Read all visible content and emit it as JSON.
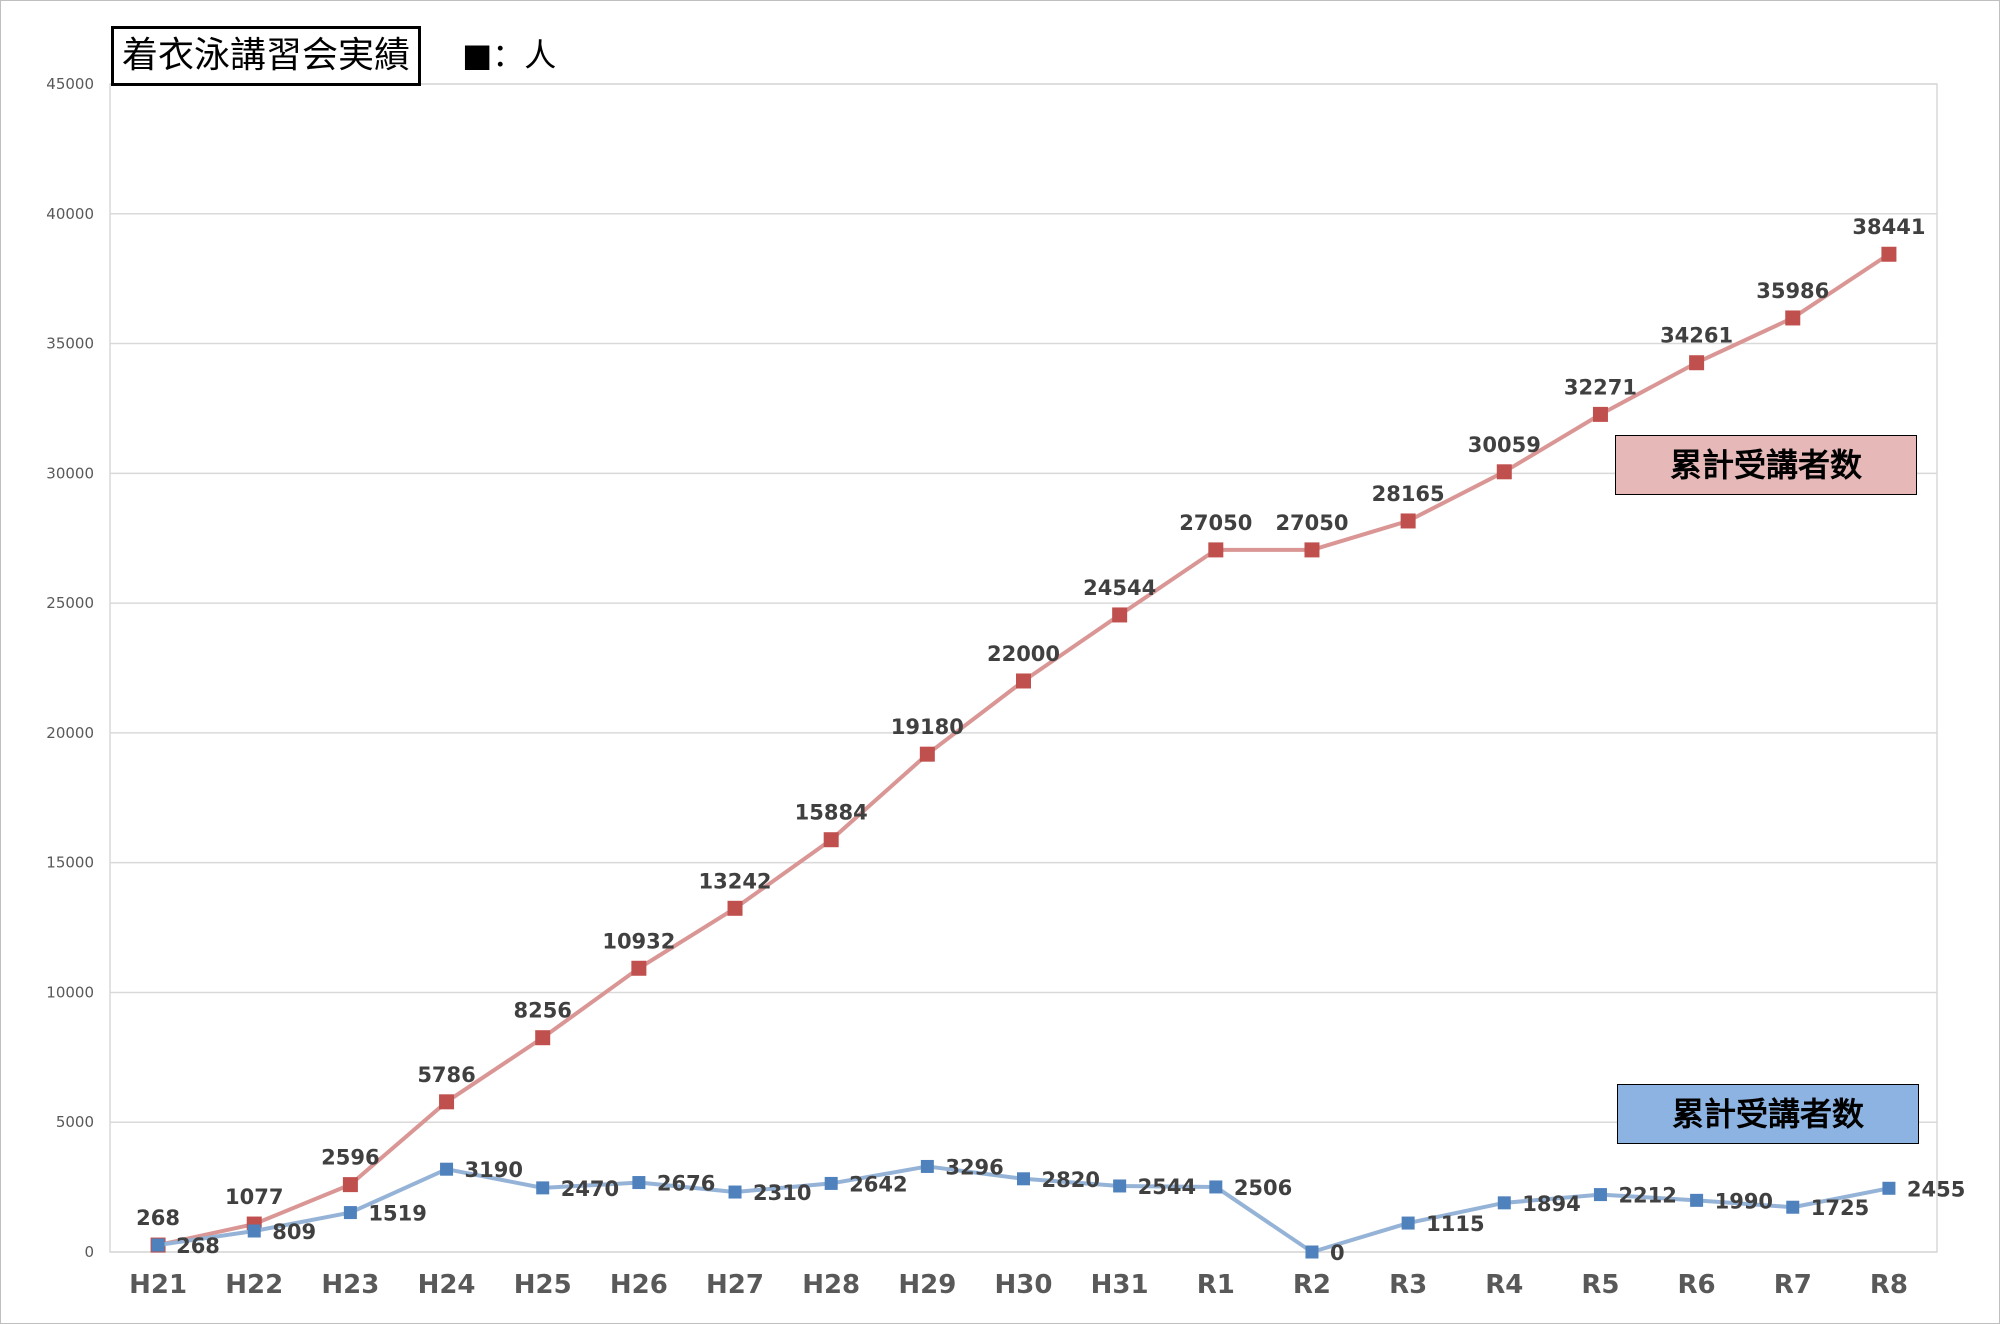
{
  "title": "着衣泳講習会実績",
  "unit_label": "■：人",
  "legend": {
    "cumulative": "累計受講者数",
    "annual": "累計受講者数"
  },
  "chart_data": {
    "type": "line",
    "title": "着衣泳講習会実績",
    "xlabel": "",
    "ylabel": "",
    "ylim": [
      0,
      45000
    ],
    "yticks": [
      0,
      5000,
      10000,
      15000,
      20000,
      25000,
      30000,
      35000,
      40000,
      45000
    ],
    "grid": true,
    "categories": [
      "H21",
      "H22",
      "H23",
      "H24",
      "H25",
      "H26",
      "H27",
      "H28",
      "H29",
      "H30",
      "H31",
      "R1",
      "R2",
      "R3",
      "R4",
      "R5",
      "R6",
      "R7",
      "R8"
    ],
    "series": [
      {
        "name": "累計受講者数",
        "color": "#d99694",
        "marker_color": "#c0504d",
        "values": [
          268,
          1077,
          2596,
          5786,
          8256,
          10932,
          13242,
          15884,
          19180,
          22000,
          24544,
          27050,
          27050,
          28165,
          30059,
          32271,
          34261,
          35986,
          38441
        ]
      },
      {
        "name": "累計受講者数",
        "color": "#95b3d7",
        "marker_color": "#4f81bd",
        "values": [
          268,
          809,
          1519,
          3190,
          2470,
          2676,
          2310,
          2642,
          3296,
          2820,
          2544,
          2506,
          0,
          1115,
          1894,
          2212,
          1990,
          1725,
          2455
        ]
      }
    ]
  },
  "colors": {
    "legend_red_bg": "#e6b9b8",
    "legend_blue_bg": "#8db3e2",
    "grid": "#d9d9d9"
  }
}
